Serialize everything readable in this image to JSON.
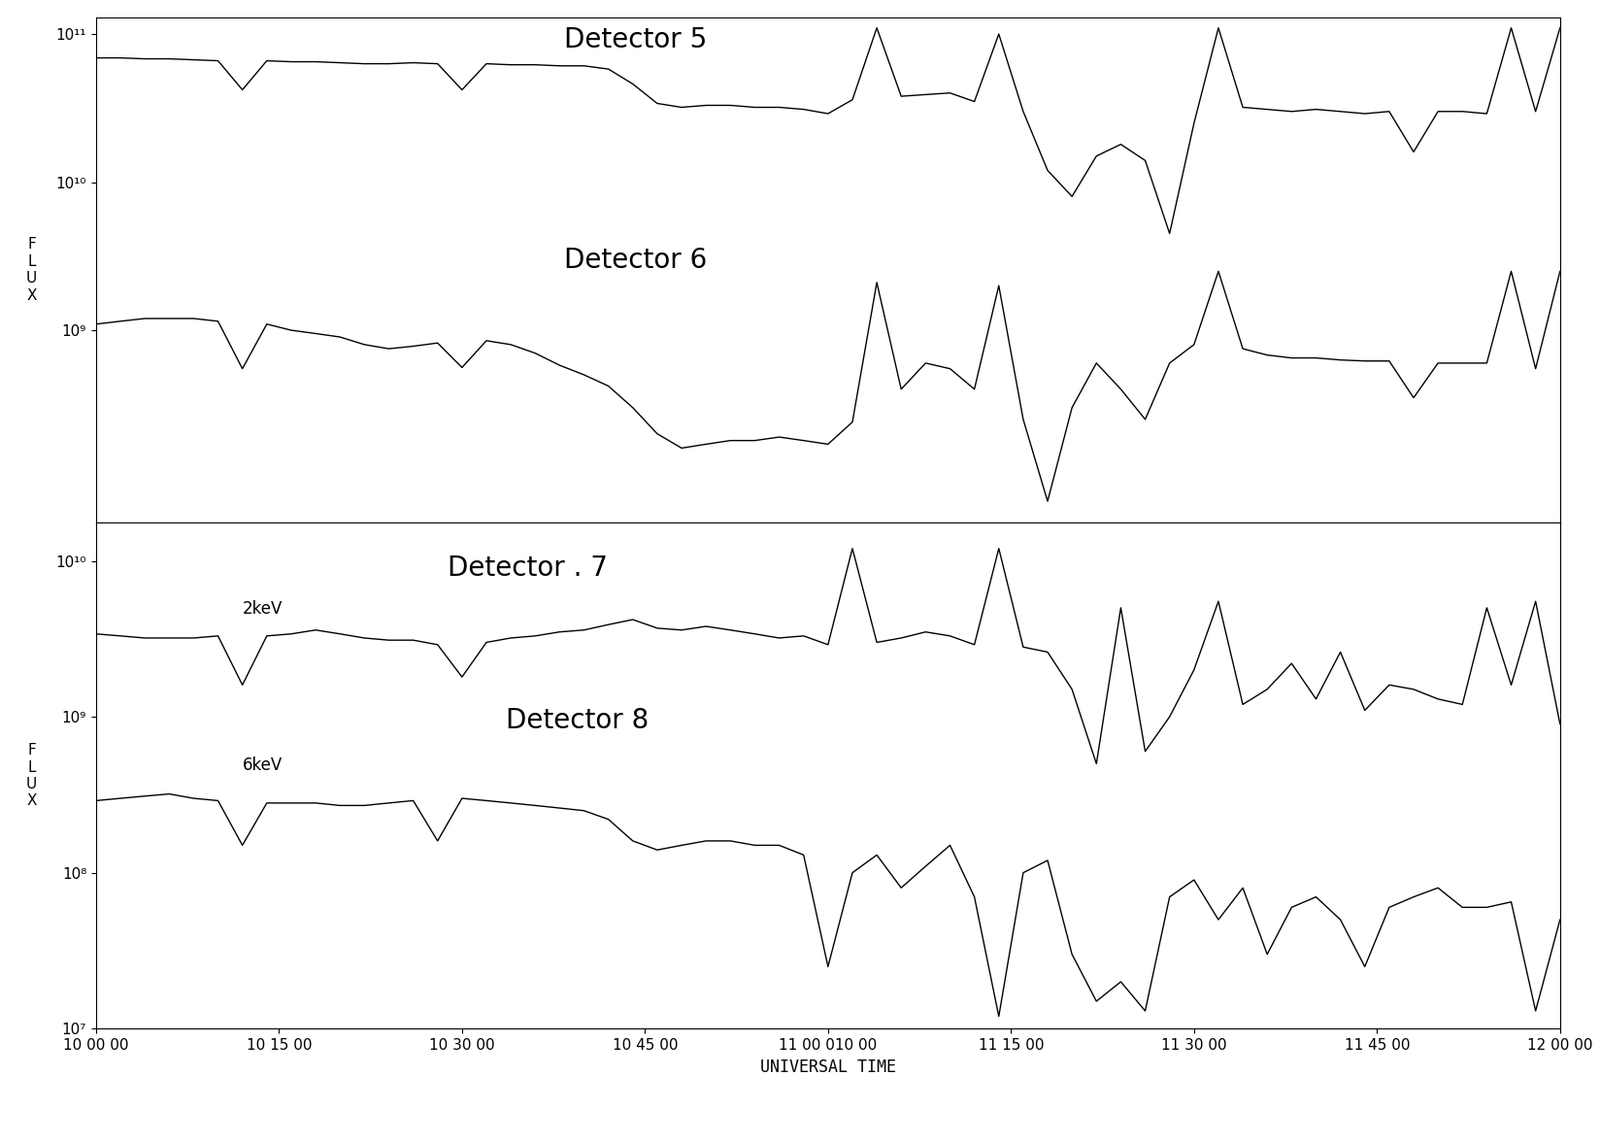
{
  "chart_data": [
    {
      "type": "line",
      "ylabel": "FLUX",
      "log": "y",
      "tick_labels": "y",
      "grid": false,
      "x": [
        0,
        2,
        4,
        6,
        8,
        10,
        12,
        14,
        16,
        18,
        20,
        22,
        24,
        26,
        28,
        30,
        32,
        34,
        36,
        38,
        40,
        42,
        44,
        46,
        48,
        50,
        52,
        54,
        56,
        58,
        60,
        62,
        64,
        66,
        68,
        70,
        72,
        74,
        76,
        78,
        80,
        82,
        84,
        86,
        88,
        90,
        92,
        94,
        96,
        98,
        100,
        102,
        104,
        106,
        108,
        110,
        112,
        114,
        116,
        118,
        120
      ],
      "xlim": [
        0,
        120
      ],
      "xticks": [
        {
          "value": 0,
          "label": "10 00 00"
        },
        {
          "value": 15,
          "label": "10 15 00"
        },
        {
          "value": 30,
          "label": "10 30 00"
        },
        {
          "value": 45,
          "label": "10 45 00"
        },
        {
          "value": 60,
          "label": "11 00 010 00"
        },
        {
          "value": 75,
          "label": "11 15 00"
        },
        {
          "value": 90,
          "label": "11 30 00"
        },
        {
          "value": 105,
          "label": "11 45 00"
        },
        {
          "value": 120,
          "label": "12 00 00"
        }
      ],
      "ylim": [
        50000000.0,
        130000000000.0
      ],
      "yticks": [
        {
          "value": 1000000000.0,
          "label": "10⁹"
        },
        {
          "value": 10000000000.0,
          "label": "10¹⁰"
        },
        {
          "value": 100000000000.0,
          "label": "10¹¹"
        }
      ],
      "series": [
        {
          "name": "Detector 5",
          "color": "#000000",
          "line_style": "solid",
          "values": [
            69000000000.0,
            69000000000.0,
            68000000000.0,
            68000000000.0,
            67000000000.0,
            66000000000.0,
            42000000000.0,
            66000000000.0,
            65000000000.0,
            65000000000.0,
            64000000000.0,
            63000000000.0,
            63000000000.0,
            64000000000.0,
            63000000000.0,
            42000000000.0,
            63000000000.0,
            62000000000.0,
            62000000000.0,
            61000000000.0,
            61000000000.0,
            58000000000.0,
            46000000000.0,
            34000000000.0,
            32000000000.0,
            33000000000.0,
            33000000000.0,
            32000000000.0,
            32000000000.0,
            31000000000.0,
            29000000000.0,
            36000000000.0,
            110000000000.0,
            38000000000.0,
            39000000000.0,
            40000000000.0,
            35000000000.0,
            100000000000.0,
            30000000000.0,
            12000000000.0,
            8000000000.0,
            15000000000.0,
            18000000000.0,
            14000000000.0,
            4500000000.0,
            25000000000.0,
            110000000000.0,
            32000000000.0,
            31000000000.0,
            30000000000.0,
            31000000000.0,
            30000000000.0,
            29000000000.0,
            30000000000.0,
            16000000000.0,
            30000000000.0,
            30000000000.0,
            29000000000.0,
            110000000000.0,
            30000000000.0,
            110000000000.0
          ]
        },
        {
          "name": "Detector 6",
          "color": "#000000",
          "line_style": "solid",
          "values": [
            1100000000.0,
            1150000000.0,
            1200000000.0,
            1200000000.0,
            1200000000.0,
            1150000000.0,
            550000000.0,
            1100000000.0,
            1000000000.0,
            950000000.0,
            900000000.0,
            800000000.0,
            750000000.0,
            780000000.0,
            820000000.0,
            560000000.0,
            850000000.0,
            800000000.0,
            700000000.0,
            580000000.0,
            500000000.0,
            420000000.0,
            300000000.0,
            200000000.0,
            160000000.0,
            170000000.0,
            180000000.0,
            180000000.0,
            190000000.0,
            180000000.0,
            170000000.0,
            240000000.0,
            2100000000.0,
            400000000.0,
            600000000.0,
            550000000.0,
            400000000.0,
            2000000000.0,
            250000000.0,
            70000000.0,
            300000000.0,
            600000000.0,
            400000000.0,
            250000000.0,
            600000000.0,
            800000000.0,
            2500000000.0,
            750000000.0,
            680000000.0,
            650000000.0,
            650000000.0,
            630000000.0,
            620000000.0,
            620000000.0,
            350000000.0,
            600000000.0,
            600000000.0,
            600000000.0,
            2500000000.0,
            550000000.0,
            2500000000.0
          ]
        }
      ]
    },
    {
      "type": "line",
      "ylabel": "FLUX",
      "xlabel": "UNIVERSAL TIME",
      "log": "y",
      "grid": false,
      "x": [
        0,
        2,
        4,
        6,
        8,
        10,
        12,
        14,
        16,
        18,
        20,
        22,
        24,
        26,
        28,
        30,
        32,
        34,
        36,
        38,
        40,
        42,
        44,
        46,
        48,
        50,
        52,
        54,
        56,
        58,
        60,
        62,
        64,
        66,
        68,
        70,
        72,
        74,
        76,
        78,
        80,
        82,
        84,
        86,
        88,
        90,
        92,
        94,
        96,
        98,
        100,
        102,
        104,
        106,
        108,
        110,
        112,
        114,
        116,
        118,
        120
      ],
      "xlim": [
        0,
        120
      ],
      "xticks": [
        {
          "value": 0,
          "label": "10 00 00"
        },
        {
          "value": 15,
          "label": "10 15 00"
        },
        {
          "value": 30,
          "label": "10 30 00"
        },
        {
          "value": 45,
          "label": "10 45 00"
        },
        {
          "value": 60,
          "label": "11 00 010 00"
        },
        {
          "value": 75,
          "label": "11 15 00"
        },
        {
          "value": 90,
          "label": "11 30 00"
        },
        {
          "value": 105,
          "label": "11 45 00"
        },
        {
          "value": 120,
          "label": "12 00 00"
        }
      ],
      "ylim": [
        10000000.0,
        17500000000.0
      ],
      "yticks": [
        {
          "value": 10000000.0,
          "label": "10⁷"
        },
        {
          "value": 100000000.0,
          "label": "10⁸"
        },
        {
          "value": 1000000000.0,
          "label": "10⁹"
        },
        {
          "value": 10000000000.0,
          "label": "10¹⁰"
        }
      ],
      "series": [
        {
          "name": "Detector . 7",
          "annotation": "2keV",
          "color": "#000000",
          "line_style": "solid",
          "values": [
            3400000000.0,
            3300000000.0,
            3200000000.0,
            3200000000.0,
            3200000000.0,
            3300000000.0,
            1600000000.0,
            3300000000.0,
            3400000000.0,
            3600000000.0,
            3400000000.0,
            3200000000.0,
            3100000000.0,
            3100000000.0,
            2900000000.0,
            1800000000.0,
            3000000000.0,
            3200000000.0,
            3300000000.0,
            3500000000.0,
            3600000000.0,
            3900000000.0,
            4200000000.0,
            3700000000.0,
            3600000000.0,
            3800000000.0,
            3600000000.0,
            3400000000.0,
            3200000000.0,
            3300000000.0,
            2900000000.0,
            12000000000.0,
            3000000000.0,
            3200000000.0,
            3500000000.0,
            3300000000.0,
            2900000000.0,
            12000000000.0,
            2800000000.0,
            2600000000.0,
            1500000000.0,
            500000000.0,
            5000000000.0,
            600000000.0,
            1000000000.0,
            2000000000.0,
            5500000000.0,
            1200000000.0,
            1500000000.0,
            2200000000.0,
            1300000000.0,
            2600000000.0,
            1100000000.0,
            1600000000.0,
            1500000000.0,
            1300000000.0,
            1200000000.0,
            5000000000.0,
            1600000000.0,
            5500000000.0,
            900000000.0
          ]
        },
        {
          "name": "Detector 8",
          "annotation": "6keV",
          "color": "#000000",
          "line_style": "solid",
          "values": [
            290000000.0,
            300000000.0,
            310000000.0,
            320000000.0,
            300000000.0,
            290000000.0,
            150000000.0,
            280000000.0,
            280000000.0,
            280000000.0,
            270000000.0,
            270000000.0,
            280000000.0,
            290000000.0,
            160000000.0,
            300000000.0,
            290000000.0,
            280000000.0,
            270000000.0,
            260000000.0,
            250000000.0,
            220000000.0,
            160000000.0,
            140000000.0,
            150000000.0,
            160000000.0,
            160000000.0,
            150000000.0,
            150000000.0,
            130000000.0,
            25000000.0,
            100000000.0,
            130000000.0,
            80000000.0,
            110000000.0,
            150000000.0,
            70000000.0,
            12000000.0,
            100000000.0,
            120000000.0,
            30000000.0,
            15000000.0,
            20000000.0,
            13000000.0,
            70000000.0,
            90000000.0,
            50000000.0,
            80000000.0,
            30000000.0,
            60000000.0,
            70000000.0,
            50000000.0,
            25000000.0,
            60000000.0,
            70000000.0,
            80000000.0,
            60000000.0,
            60000000.0,
            65000000.0,
            13000000.0,
            50000000.0
          ]
        }
      ]
    }
  ]
}
